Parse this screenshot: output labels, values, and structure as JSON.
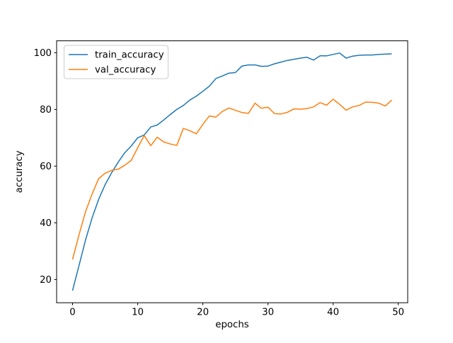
{
  "chart_data": {
    "type": "line",
    "title": "",
    "xlabel": "epochs",
    "ylabel": "accuracy",
    "xlim": [
      -2.45,
      51.45
    ],
    "ylim": [
      11.8,
      104.2
    ],
    "x_ticks": [
      0,
      10,
      20,
      30,
      40,
      50
    ],
    "y_ticks": [
      20,
      40,
      60,
      80,
      100
    ],
    "grid": false,
    "legend_position": "upper left",
    "background_color": "#ffffff",
    "spine_color": "#000000",
    "x": [
      0,
      1,
      2,
      3,
      4,
      5,
      6,
      7,
      8,
      9,
      10,
      11,
      12,
      13,
      14,
      15,
      16,
      17,
      18,
      19,
      20,
      21,
      22,
      23,
      24,
      25,
      26,
      27,
      28,
      29,
      30,
      31,
      32,
      33,
      34,
      35,
      36,
      37,
      38,
      39,
      40,
      41,
      42,
      43,
      44,
      45,
      46,
      47,
      48,
      49
    ],
    "series": [
      {
        "name": "train_accuracy",
        "color": "#1f77b4",
        "values": [
          16.1,
          25.0,
          34.0,
          41.8,
          48.3,
          53.5,
          57.7,
          61.4,
          64.7,
          67.1,
          70.0,
          71.0,
          73.8,
          74.5,
          76.3,
          78.2,
          80.0,
          81.4,
          83.3,
          84.7,
          86.4,
          88.2,
          90.9,
          91.8,
          92.8,
          93.0,
          95.3,
          95.7,
          95.7,
          95.2,
          95.3,
          96.1,
          96.7,
          97.3,
          97.7,
          98.1,
          98.4,
          97.4,
          98.9,
          98.9,
          99.4,
          99.9,
          98.1,
          98.8,
          99.1,
          99.2,
          99.2,
          99.4,
          99.5,
          99.6
        ]
      },
      {
        "name": "val_accuracy",
        "color": "#ff7f0e",
        "values": [
          27.1,
          35.8,
          44.0,
          50.2,
          55.6,
          57.5,
          58.5,
          58.9,
          60.3,
          62.0,
          66.5,
          70.8,
          67.2,
          70.2,
          68.5,
          67.8,
          67.3,
          73.3,
          72.5,
          71.4,
          74.7,
          77.7,
          77.3,
          79.3,
          80.5,
          79.7,
          78.9,
          78.6,
          82.2,
          80.4,
          80.8,
          78.5,
          78.4,
          79.0,
          80.2,
          80.1,
          80.3,
          80.9,
          82.4,
          81.5,
          83.6,
          81.8,
          79.7,
          80.9,
          81.4,
          82.6,
          82.5,
          82.2,
          81.2,
          83.3
        ]
      }
    ]
  }
}
